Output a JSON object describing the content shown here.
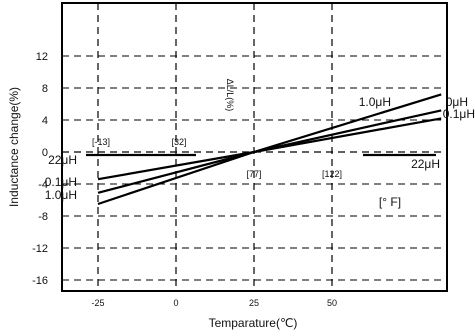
{
  "chart_data": {
    "type": "line",
    "xlabel": "Temparature(℃)",
    "ylabel": "Inductance change(%)",
    "xlim": [
      -35,
      85
    ],
    "ylim": [
      -18,
      20
    ],
    "x_ticks": [
      -25,
      0,
      25,
      50
    ],
    "y_ticks": [
      12,
      8,
      4,
      0,
      -4,
      -8,
      -12,
      -16
    ],
    "grid": true,
    "fahrenheit_ticks": [
      {
        "label": "[-13]",
        "celsius": -25
      },
      {
        "label": "[32]",
        "celsius": 0
      },
      {
        "label": "[77]",
        "celsius": 25
      },
      {
        "label": "[122]",
        "celsius": 50
      }
    ],
    "fahrenheit_unit": "[° F]",
    "delta_label": "ΔL/L(%)",
    "series": [
      {
        "name": "1.0μH",
        "left_label": "1.0μH",
        "right_label": "1.0μH",
        "x": [
          -25,
          25,
          85
        ],
        "y": [
          -6.5,
          0,
          7.2
        ]
      },
      {
        "name": "0.1μH",
        "left_label": "0.1μH",
        "right_label": "0.1μH",
        "x": [
          -25,
          25,
          85
        ],
        "y": [
          -5.1,
          0,
          5.2
        ]
      },
      {
        "name": "22μH",
        "left_label": "22μH",
        "right_label": "22μH",
        "x": [
          -25,
          25,
          85
        ],
        "y": [
          -3.4,
          0,
          4.2
        ]
      }
    ],
    "extra_labels": {
      "right_top": "0μH",
      "right_mid": "0.1μH"
    }
  }
}
